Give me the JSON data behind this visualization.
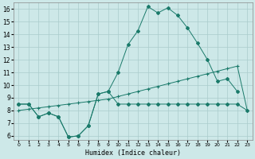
{
  "xlabel": "Humidex (Indice chaleur)",
  "x": [
    0,
    1,
    2,
    3,
    4,
    5,
    6,
    7,
    8,
    9,
    10,
    11,
    12,
    13,
    14,
    15,
    16,
    17,
    18,
    19,
    20,
    21,
    22,
    23
  ],
  "curve_a": [
    8.5,
    8.5,
    7.5,
    7.8,
    7.5,
    5.9,
    6.0,
    6.8,
    9.3,
    9.5,
    8.5,
    8.5,
    8.5,
    8.5,
    8.5,
    8.5,
    8.5,
    8.5,
    8.5,
    8.5,
    8.5,
    8.5,
    8.5,
    8.0
  ],
  "curve_b_x": [
    0,
    1,
    2,
    3,
    4,
    5,
    6,
    7,
    8,
    9,
    10,
    11,
    12,
    13,
    14,
    15,
    16,
    17,
    18,
    19,
    20,
    21,
    22
  ],
  "curve_b": [
    8.5,
    8.5,
    7.5,
    7.8,
    7.5,
    5.9,
    6.0,
    6.8,
    9.3,
    9.5,
    11.0,
    13.2,
    14.3,
    16.2,
    15.7,
    16.1,
    15.5,
    14.5,
    13.3,
    12.0,
    10.3,
    10.5,
    9.5
  ],
  "curve_c": [
    8.0,
    8.1,
    8.2,
    8.3,
    8.4,
    8.5,
    8.6,
    8.7,
    8.8,
    8.9,
    9.1,
    9.3,
    9.5,
    9.7,
    9.9,
    10.1,
    10.3,
    10.5,
    10.7,
    10.9,
    11.1,
    11.3,
    11.5,
    8.0
  ],
  "bg_color": "#cde8e8",
  "grid_color": "#aacccc",
  "line_color": "#1a7a6a",
  "ylim_min": 5.7,
  "ylim_max": 16.5,
  "xlim_min": -0.5,
  "xlim_max": 23.5,
  "yticks": [
    6,
    7,
    8,
    9,
    10,
    11,
    12,
    13,
    14,
    15,
    16
  ],
  "xtick_labels": [
    "0",
    "1",
    "2",
    "3",
    "4",
    "5",
    "6",
    "7",
    "8",
    "9",
    "10",
    "11",
    "12",
    "13",
    "14",
    "15",
    "16",
    "17",
    "18",
    "19",
    "20",
    "21",
    "22",
    "23"
  ]
}
